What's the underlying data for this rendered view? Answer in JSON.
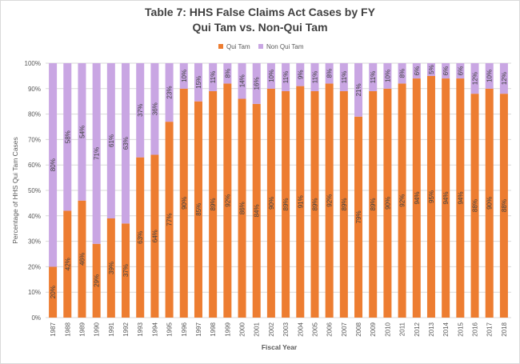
{
  "colors": {
    "qui_tam": "#ED7D31",
    "non_qui_tam": "#C9A6E3",
    "grid": "#D9D9D9",
    "text": "#595959"
  },
  "chart_data": {
    "type": "bar",
    "stacked": true,
    "title": "Table 7: HHS False Claims Act Cases by FY",
    "subtitle": "Qui Tam vs. Non-Qui Tam",
    "xlabel": "Fiscal Year",
    "ylabel": "Percentage of HHS Qui Tam Cases",
    "ylim": [
      0,
      100
    ],
    "yticks": [
      "0%",
      "10%",
      "20%",
      "30%",
      "40%",
      "50%",
      "60%",
      "70%",
      "80%",
      "90%",
      "100%"
    ],
    "legend_position": "top",
    "grid": true,
    "categories": [
      "1987",
      "1988",
      "1989",
      "1990",
      "1991",
      "1992",
      "1993",
      "1994",
      "1995",
      "1996",
      "1997",
      "1998",
      "1999",
      "2000",
      "2001",
      "2002",
      "2003",
      "2004",
      "2005",
      "2006",
      "2007",
      "2008",
      "2009",
      "2010",
      "2011",
      "2012",
      "2013",
      "2014",
      "2015",
      "2016",
      "2017",
      "2018"
    ],
    "series": [
      {
        "name": "Qui Tam",
        "color": "#ED7D31",
        "values": [
          20,
          42,
          46,
          29,
          39,
          37,
          63,
          64,
          77,
          90,
          85,
          89,
          92,
          86,
          84,
          90,
          89,
          91,
          89,
          92,
          89,
          79,
          89,
          90,
          92,
          94,
          95,
          94,
          94,
          88,
          90,
          88
        ],
        "labels": [
          "20%",
          "42%",
          "46%",
          "29%",
          "39%",
          "37%",
          "63%",
          "64%",
          "77%",
          "90%",
          "85%",
          "89%",
          "92%",
          "86%",
          "84%",
          "90%",
          "89%",
          "91%",
          "89%",
          "92%",
          "89%",
          "79%",
          "89%",
          "90%",
          "92%",
          "94%",
          "95%",
          "94%",
          "94%",
          "88%",
          "90%",
          "88%"
        ]
      },
      {
        "name": "Non Qui Tam",
        "color": "#C9A6E3",
        "values": [
          80,
          58,
          54,
          71,
          61,
          63,
          37,
          36,
          23,
          10,
          15,
          11,
          8,
          14,
          16,
          10,
          11,
          9,
          11,
          8,
          11,
          21,
          11,
          10,
          8,
          6,
          5,
          6,
          6,
          12,
          10,
          12
        ],
        "labels": [
          "80%",
          "58%",
          "54%",
          "71%",
          "61%",
          "63%",
          "37%",
          "36%",
          "23%",
          "10%",
          "15%",
          "11%",
          "8%",
          "14%",
          "16%",
          "10%",
          "11%",
          "9%",
          "11%",
          "8%",
          "11%",
          "21%",
          "11%",
          "10%",
          "8%",
          "6%",
          "5%",
          "6%",
          "6%",
          "12%",
          "10%",
          "12%"
        ]
      }
    ]
  }
}
